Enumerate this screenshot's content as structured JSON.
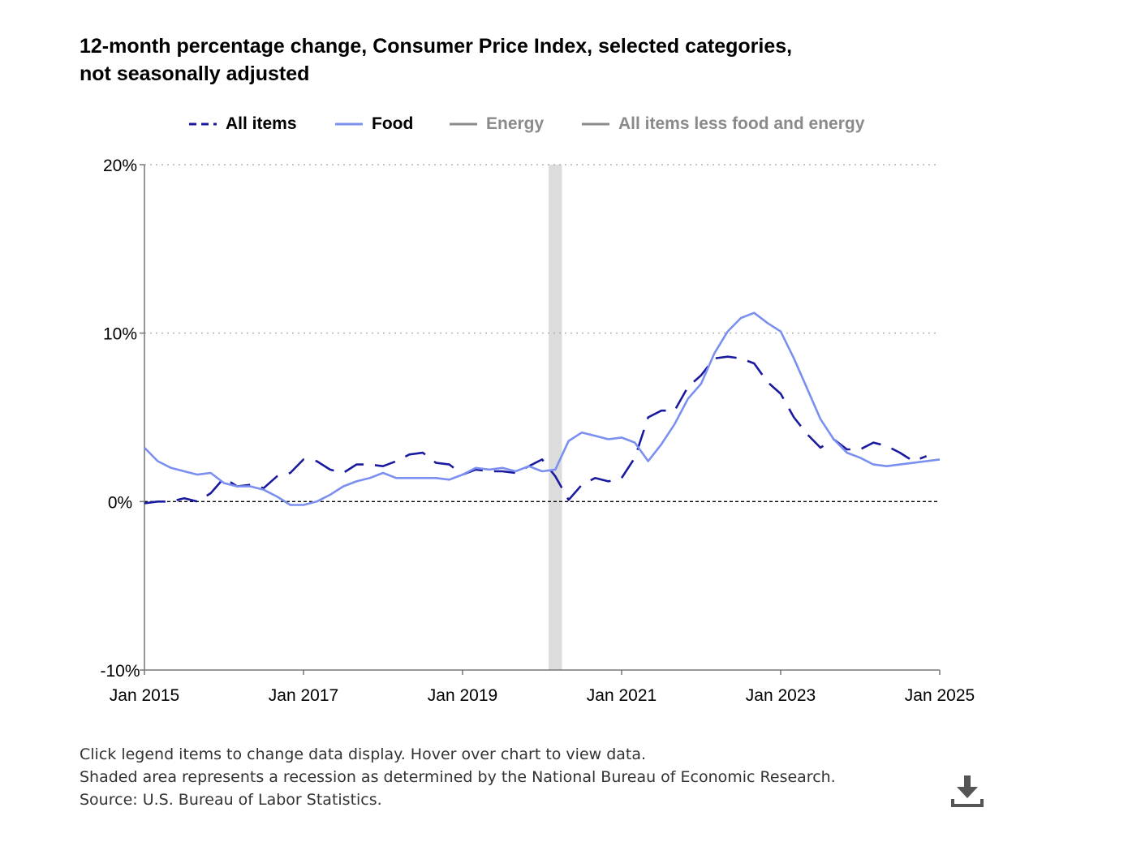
{
  "title_line1": "12-month percentage change, Consumer Price Index, selected categories,",
  "title_line2": "not seasonally adjusted",
  "legend": [
    {
      "label": "All items",
      "color": "#1a1aa0",
      "style": "dashed",
      "active": true
    },
    {
      "label": "Food",
      "color": "#7b8ff0",
      "style": "solid",
      "active": true
    },
    {
      "label": "Energy",
      "color": "#8a8a8a",
      "style": "solid",
      "active": false
    },
    {
      "label": "All items less food and energy",
      "color": "#8a8a8a",
      "style": "solid",
      "active": false
    }
  ],
  "notes": [
    "Click legend items to change data display. Hover over chart to view data.",
    "Shaded area represents a recession as determined by the National Bureau of Economic Research.",
    "Source: U.S. Bureau of Labor Statistics."
  ],
  "download_icon": "download-icon",
  "chart_data": {
    "type": "line",
    "title": "12-month percentage change, Consumer Price Index, selected categories, not seasonally adjusted",
    "xlabel": "",
    "ylabel": "",
    "x_ticks": [
      "Jan 2015",
      "Jan 2017",
      "Jan 2019",
      "Jan 2021",
      "Jan 2023",
      "Jan 2025"
    ],
    "x_range": [
      "Jan 2015",
      "Jan 2025"
    ],
    "y_ticks": [
      -10,
      0,
      10,
      20
    ],
    "y_tick_labels": [
      "-10%",
      "0%",
      "10%",
      "20%"
    ],
    "ylim": [
      -10,
      20
    ],
    "grid": "horizontal dotted at 10% and 20%; dashed reference line at 0%",
    "legend_position": "top",
    "recession_shading": {
      "start": "Feb 2020",
      "end": "Apr 2020",
      "color": "#dcdcdc"
    },
    "series": [
      {
        "name": "All items",
        "style": "dashed",
        "color": "#1a1aa0",
        "points": [
          [
            "2015-01",
            -0.1
          ],
          [
            "2015-03",
            0.0
          ],
          [
            "2015-05",
            0.0
          ],
          [
            "2015-07",
            0.2
          ],
          [
            "2015-09",
            0.0
          ],
          [
            "2015-11",
            0.5
          ],
          [
            "2016-01",
            1.4
          ],
          [
            "2016-03",
            0.9
          ],
          [
            "2016-05",
            1.0
          ],
          [
            "2016-07",
            0.8
          ],
          [
            "2016-09",
            1.5
          ],
          [
            "2016-11",
            1.7
          ],
          [
            "2017-01",
            2.5
          ],
          [
            "2017-03",
            2.4
          ],
          [
            "2017-05",
            1.9
          ],
          [
            "2017-07",
            1.7
          ],
          [
            "2017-09",
            2.2
          ],
          [
            "2017-11",
            2.2
          ],
          [
            "2018-01",
            2.1
          ],
          [
            "2018-03",
            2.4
          ],
          [
            "2018-05",
            2.8
          ],
          [
            "2018-07",
            2.9
          ],
          [
            "2018-09",
            2.3
          ],
          [
            "2018-11",
            2.2
          ],
          [
            "2019-01",
            1.6
          ],
          [
            "2019-03",
            1.9
          ],
          [
            "2019-05",
            1.8
          ],
          [
            "2019-07",
            1.8
          ],
          [
            "2019-09",
            1.7
          ],
          [
            "2019-11",
            2.1
          ],
          [
            "2020-01",
            2.5
          ],
          [
            "2020-03",
            1.5
          ],
          [
            "2020-05",
            0.1
          ],
          [
            "2020-07",
            1.0
          ],
          [
            "2020-09",
            1.4
          ],
          [
            "2020-11",
            1.2
          ],
          [
            "2021-01",
            1.4
          ],
          [
            "2021-03",
            2.6
          ],
          [
            "2021-05",
            5.0
          ],
          [
            "2021-07",
            5.4
          ],
          [
            "2021-09",
            5.4
          ],
          [
            "2021-11",
            6.8
          ],
          [
            "2022-01",
            7.5
          ],
          [
            "2022-03",
            8.5
          ],
          [
            "2022-05",
            8.6
          ],
          [
            "2022-07",
            8.5
          ],
          [
            "2022-09",
            8.2
          ],
          [
            "2022-11",
            7.1
          ],
          [
            "2023-01",
            6.4
          ],
          [
            "2023-03",
            5.0
          ],
          [
            "2023-05",
            4.0
          ],
          [
            "2023-07",
            3.2
          ],
          [
            "2023-09",
            3.7
          ],
          [
            "2023-11",
            3.1
          ],
          [
            "2024-01",
            3.1
          ],
          [
            "2024-03",
            3.5
          ],
          [
            "2024-05",
            3.3
          ],
          [
            "2024-07",
            2.9
          ],
          [
            "2024-09",
            2.4
          ],
          [
            "2024-11",
            2.7
          ]
        ]
      },
      {
        "name": "Food",
        "style": "solid",
        "color": "#7b8ff0",
        "points": [
          [
            "2015-01",
            3.2
          ],
          [
            "2015-03",
            2.4
          ],
          [
            "2015-05",
            2.0
          ],
          [
            "2015-07",
            1.8
          ],
          [
            "2015-09",
            1.6
          ],
          [
            "2015-11",
            1.7
          ],
          [
            "2016-01",
            1.1
          ],
          [
            "2016-03",
            0.9
          ],
          [
            "2016-05",
            0.9
          ],
          [
            "2016-07",
            0.7
          ],
          [
            "2016-09",
            0.3
          ],
          [
            "2016-11",
            -0.2
          ],
          [
            "2017-01",
            -0.2
          ],
          [
            "2017-03",
            0.0
          ],
          [
            "2017-05",
            0.4
          ],
          [
            "2017-07",
            0.9
          ],
          [
            "2017-09",
            1.2
          ],
          [
            "2017-11",
            1.4
          ],
          [
            "2018-01",
            1.7
          ],
          [
            "2018-03",
            1.4
          ],
          [
            "2018-05",
            1.4
          ],
          [
            "2018-07",
            1.4
          ],
          [
            "2018-09",
            1.4
          ],
          [
            "2018-11",
            1.3
          ],
          [
            "2019-01",
            1.6
          ],
          [
            "2019-03",
            2.0
          ],
          [
            "2019-05",
            1.9
          ],
          [
            "2019-07",
            2.0
          ],
          [
            "2019-09",
            1.8
          ],
          [
            "2019-11",
            2.1
          ],
          [
            "2020-01",
            1.8
          ],
          [
            "2020-03",
            1.9
          ],
          [
            "2020-05",
            3.6
          ],
          [
            "2020-07",
            4.1
          ],
          [
            "2020-09",
            3.9
          ],
          [
            "2020-11",
            3.7
          ],
          [
            "2021-01",
            3.8
          ],
          [
            "2021-03",
            3.5
          ],
          [
            "2021-05",
            2.4
          ],
          [
            "2021-07",
            3.4
          ],
          [
            "2021-09",
            4.6
          ],
          [
            "2021-11",
            6.1
          ],
          [
            "2022-01",
            7.0
          ],
          [
            "2022-03",
            8.8
          ],
          [
            "2022-05",
            10.1
          ],
          [
            "2022-07",
            10.9
          ],
          [
            "2022-09",
            11.2
          ],
          [
            "2022-11",
            10.6
          ],
          [
            "2023-01",
            10.1
          ],
          [
            "2023-03",
            8.5
          ],
          [
            "2023-05",
            6.7
          ],
          [
            "2023-07",
            4.9
          ],
          [
            "2023-09",
            3.7
          ],
          [
            "2023-11",
            2.9
          ],
          [
            "2024-01",
            2.6
          ],
          [
            "2024-03",
            2.2
          ],
          [
            "2024-05",
            2.1
          ],
          [
            "2024-07",
            2.2
          ],
          [
            "2024-09",
            2.3
          ],
          [
            "2024-11",
            2.4
          ],
          [
            "2025-01",
            2.5
          ]
        ]
      }
    ]
  }
}
